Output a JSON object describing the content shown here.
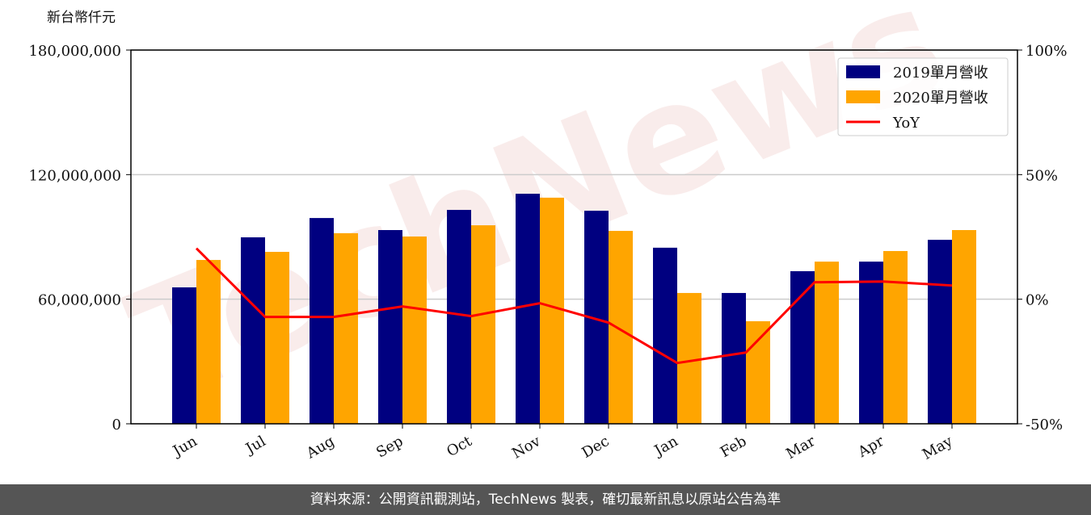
{
  "chart_data": {
    "type": "bar_line",
    "ylabel": "新台幣仟元",
    "watermark": "TechNews",
    "categories": [
      "Jun",
      "Jul",
      "Aug",
      "Sep",
      "Oct",
      "Nov",
      "Dec",
      "Jan",
      "Feb",
      "Mar",
      "Apr",
      "May"
    ],
    "series": [
      {
        "name": "2019單月營收",
        "type": "bar",
        "color": "#000080",
        "values": [
          65700000,
          89800000,
          99100000,
          93300000,
          103000000,
          110800000,
          102600000,
          84800000,
          63000000,
          73500000,
          78100000,
          88600000
        ]
      },
      {
        "name": "2020單月營收",
        "type": "bar",
        "color": "#ffa500",
        "values": [
          78900000,
          82800000,
          91800000,
          90200000,
          95600000,
          108900000,
          92900000,
          63000000,
          49400000,
          78100000,
          83200000,
          93300000
        ]
      },
      {
        "name": "YoY",
        "type": "line",
        "axis": "y2",
        "color": "#ff0000",
        "values": [
          20.4,
          -7.1,
          -7.1,
          -2.9,
          -6.8,
          -1.6,
          -9.4,
          -25.6,
          -21.4,
          6.8,
          7.1,
          5.5
        ]
      }
    ],
    "ylim": [
      0,
      180000000
    ],
    "yticks": [
      0,
      {
        "value": 60000000,
        "label": "60,000,000"
      },
      {
        "value": 120000000,
        "label": "120,000,000"
      },
      {
        "value": 180000000,
        "label": "180,000,000"
      }
    ],
    "y2lim": [
      -50,
      100
    ],
    "y2ticks": [
      {
        "value": -50,
        "label": "-50%"
      },
      {
        "value": 0,
        "label": "0%"
      },
      {
        "value": 50,
        "label": "50%"
      },
      {
        "value": 100,
        "label": "100%"
      }
    ],
    "grid": true,
    "legend": "upper right"
  },
  "footer": "資料來源：公開資訊觀測站，TechNews 製表，確切最新訊息以原站公告為準"
}
